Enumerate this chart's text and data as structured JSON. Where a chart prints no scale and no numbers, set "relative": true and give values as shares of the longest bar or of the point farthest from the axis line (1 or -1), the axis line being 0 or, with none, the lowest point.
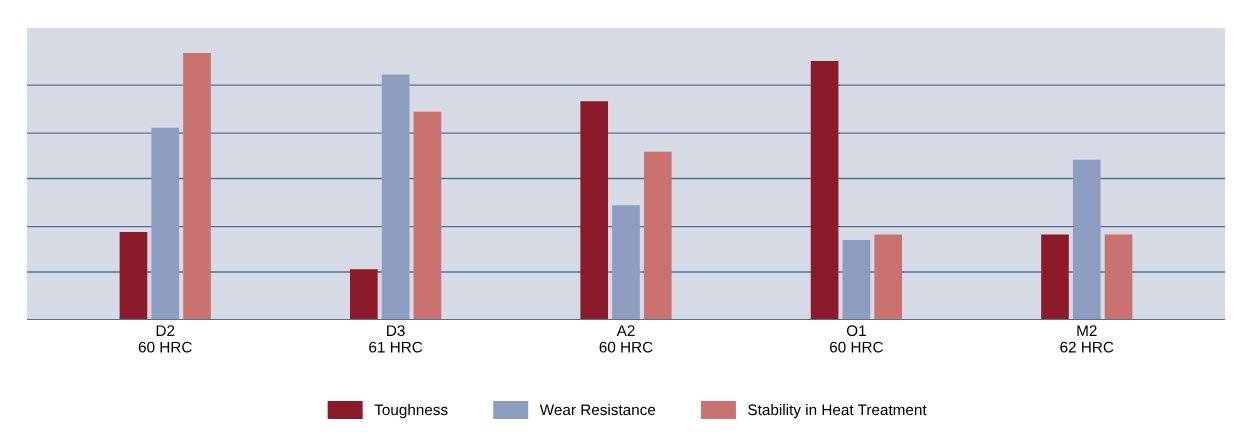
{
  "chart_data": {
    "type": "bar",
    "relative": true,
    "categories": [
      "D2\n60 HRC",
      "D3\n61 HRC",
      "A2\n60 HRC",
      "O1\n60 HRC",
      "M2\n62 HRC"
    ],
    "series": [
      {
        "name": "Toughness",
        "color": "#8b1a2b",
        "values": [
          0.33,
          0.19,
          0.82,
          0.97,
          0.32
        ]
      },
      {
        "name": "Wear Resistance",
        "color": "#8d9dc0",
        "values": [
          0.72,
          0.92,
          0.43,
          0.3,
          0.6
        ]
      },
      {
        "name": "Stability in Heat Treatment",
        "color": "#c97270",
        "values": [
          1,
          0.78,
          0.63,
          0.32,
          0.32
        ]
      }
    ],
    "ref_lines": [
      {
        "axis": "y",
        "value": 0.18,
        "color": "#5a6e94"
      },
      {
        "axis": "y",
        "value": 0.35,
        "color": "#5a6e94"
      },
      {
        "axis": "y",
        "value": 0.53,
        "color": "#5a6e94"
      },
      {
        "axis": "y",
        "value": 0.7,
        "color": "#5a6e94"
      },
      {
        "axis": "y",
        "value": 0.88,
        "color": "#5a6e94"
      }
    ],
    "legend": "bottom"
  }
}
